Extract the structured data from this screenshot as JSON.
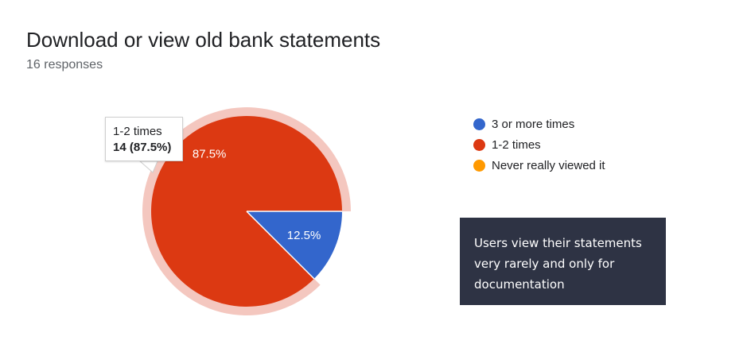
{
  "header": {
    "title": "Download or view old bank statements",
    "subtitle": "16 responses"
  },
  "tooltip": {
    "category": "1-2 times",
    "value": "14 (87.5%)"
  },
  "callout": {
    "text": "Users view their statements very rarely and only for documentation"
  },
  "colors": {
    "blue": "#3366cc",
    "red": "#dc3912",
    "orange": "#ff9900",
    "highlight": "#f4c7bf",
    "callout_bg": "#2e3344"
  },
  "chart_data": {
    "type": "pie",
    "title": "Download or view old bank statements",
    "subtitle": "16 responses",
    "total": 16,
    "categories": [
      "3 or more times",
      "1-2 times",
      "Never really viewed it"
    ],
    "values": [
      2,
      14,
      0
    ],
    "percent_labels": [
      "12.5%",
      "87.5%",
      ""
    ],
    "colors": [
      "#3366cc",
      "#dc3912",
      "#ff9900"
    ],
    "highlighted": "1-2 times",
    "legend_position": "right"
  }
}
